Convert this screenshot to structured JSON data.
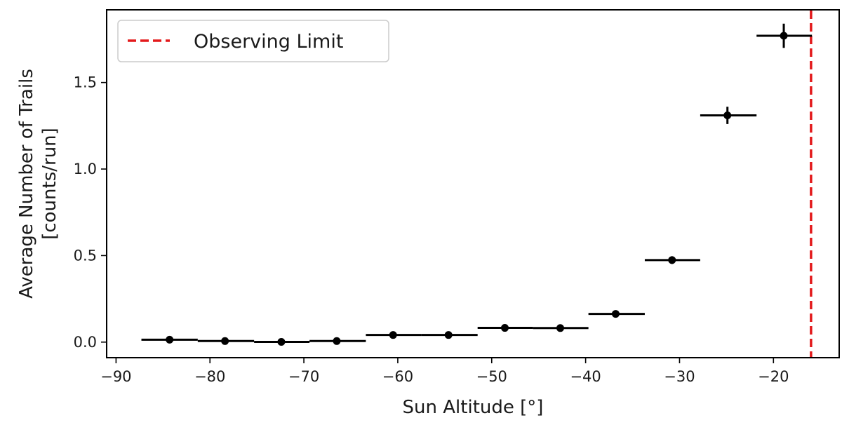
{
  "chart_data": {
    "type": "scatter",
    "title": "",
    "xlabel": "Sun Altitude [°]",
    "ylabel_lines": [
      "Average Number of Trails",
      "[counts/run]"
    ],
    "xlim": [
      -91,
      -13
    ],
    "ylim": [
      -0.09,
      1.92
    ],
    "x_ticks": [
      -90,
      -80,
      -70,
      -60,
      -50,
      -40,
      -30,
      -20
    ],
    "x_tick_labels": [
      "−90",
      "−80",
      "−70",
      "−60",
      "−50",
      "−40",
      "−30",
      "−20"
    ],
    "y_ticks": [
      0.0,
      0.5,
      1.0,
      1.5
    ],
    "y_tick_labels": [
      "0.0",
      "0.5",
      "1.0",
      "1.5"
    ],
    "grid": false,
    "legend": {
      "position": "top-left",
      "entries": [
        "Observing Limit"
      ]
    },
    "series": [
      {
        "marker": "circle",
        "color": "#000000",
        "points": [
          {
            "x": -84.3,
            "y": 0.014,
            "xlo": -87.3,
            "xhi": -81.3,
            "yerr": 0.005
          },
          {
            "x": -78.4,
            "y": 0.006,
            "xlo": -81.3,
            "xhi": -75.3,
            "yerr": 0.004
          },
          {
            "x": -72.4,
            "y": 0.001,
            "xlo": -75.3,
            "xhi": -69.4,
            "yerr": 0.002
          },
          {
            "x": -66.5,
            "y": 0.006,
            "xlo": -69.4,
            "xhi": -63.4,
            "yerr": 0.004
          },
          {
            "x": -60.5,
            "y": 0.041,
            "xlo": -63.4,
            "xhi": -57.5,
            "yerr": 0.006
          },
          {
            "x": -54.6,
            "y": 0.041,
            "xlo": -57.5,
            "xhi": -51.5,
            "yerr": 0.006
          },
          {
            "x": -48.6,
            "y": 0.082,
            "xlo": -51.5,
            "xhi": -45.6,
            "yerr": 0.008
          },
          {
            "x": -42.7,
            "y": 0.081,
            "xlo": -45.6,
            "xhi": -39.7,
            "yerr": 0.008
          },
          {
            "x": -36.8,
            "y": 0.163,
            "xlo": -39.7,
            "xhi": -33.7,
            "yerr": 0.011
          },
          {
            "x": -30.8,
            "y": 0.474,
            "xlo": -33.7,
            "xhi": -27.8,
            "yerr": 0.022
          },
          {
            "x": -24.9,
            "y": 1.31,
            "xlo": -27.8,
            "xhi": -21.8,
            "yerr": 0.05
          },
          {
            "x": -18.9,
            "y": 1.77,
            "xlo": -21.8,
            "xhi": -15.9,
            "yerr": 0.07
          }
        ]
      }
    ],
    "reference_lines": [
      {
        "orientation": "vertical",
        "x": -16.0,
        "style": "dashed",
        "color": "#e31a1c",
        "label": "Observing Limit"
      }
    ]
  }
}
